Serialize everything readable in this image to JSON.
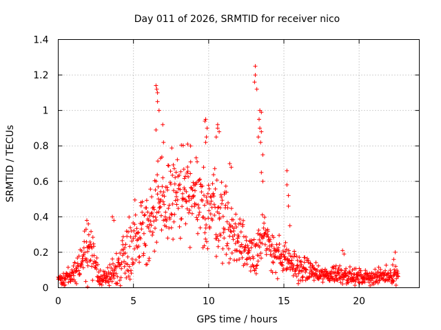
{
  "chart_data": {
    "type": "scatter",
    "title": "Day 011 of 2026, SRMTID for receiver nico",
    "xlabel": "GPS time / hours",
    "ylabel": "SRMTID / TECUs",
    "xlim": [
      0,
      24
    ],
    "ylim": [
      0,
      1.4
    ],
    "xticks": [
      0,
      5,
      10,
      15,
      20
    ],
    "xtick_labels": [
      "0",
      "5",
      "10",
      "15",
      "20"
    ],
    "yticks": [
      0,
      0.2,
      0.4,
      0.6,
      0.8,
      1,
      1.2,
      1.4
    ],
    "ytick_labels": [
      "0",
      "0.2",
      "0.4",
      "0.6",
      "0.8",
      "1",
      "1.2",
      "1.4"
    ],
    "grid": true,
    "marker": "+",
    "series": [
      {
        "name": "SRMTID",
        "color": "#ff0000",
        "envelope": {
          "x": [
            0,
            0.3,
            0.6,
            0.9,
            1.2,
            1.5,
            1.8,
            2.0,
            2.2,
            2.5,
            2.8,
            3.0,
            3.3,
            3.6,
            3.8,
            4.0,
            4.3,
            4.6,
            5.0,
            5.3,
            5.6,
            6.0,
            6.3,
            6.6,
            7.0,
            7.3,
            7.6,
            8.0,
            8.3,
            8.6,
            9.0,
            9.3,
            9.6,
            10.0,
            10.3,
            10.6,
            11.0,
            11.3,
            11.6,
            12.0,
            12.3,
            12.6,
            13.0,
            13.2,
            13.5,
            13.8,
            14.0,
            14.3,
            14.6,
            15.0,
            15.3,
            15.6,
            16.0,
            16.3,
            16.6,
            17.0,
            17.3,
            17.6,
            18.0,
            18.3,
            18.6,
            19.0,
            19.3,
            19.6,
            20.0,
            20.3,
            20.6,
            21.0,
            21.3,
            21.6,
            22.0,
            22.3,
            22.6
          ],
          "mean": [
            0.05,
            0.05,
            0.06,
            0.07,
            0.1,
            0.15,
            0.18,
            0.2,
            0.17,
            0.12,
            0.06,
            0.05,
            0.06,
            0.08,
            0.1,
            0.13,
            0.17,
            0.22,
            0.27,
            0.3,
            0.33,
            0.38,
            0.4,
            0.42,
            0.45,
            0.5,
            0.52,
            0.53,
            0.52,
            0.5,
            0.48,
            0.47,
            0.46,
            0.45,
            0.46,
            0.43,
            0.4,
            0.35,
            0.3,
            0.27,
            0.24,
            0.22,
            0.2,
            0.22,
            0.26,
            0.25,
            0.24,
            0.22,
            0.18,
            0.15,
            0.14,
            0.13,
            0.11,
            0.1,
            0.1,
            0.09,
            0.07,
            0.07,
            0.07,
            0.08,
            0.08,
            0.08,
            0.07,
            0.06,
            0.06,
            0.06,
            0.06,
            0.06,
            0.06,
            0.07,
            0.07,
            0.08,
            0.07
          ],
          "spread": [
            0.02,
            0.02,
            0.03,
            0.04,
            0.06,
            0.08,
            0.1,
            0.1,
            0.09,
            0.06,
            0.03,
            0.03,
            0.04,
            0.05,
            0.07,
            0.08,
            0.1,
            0.12,
            0.14,
            0.15,
            0.16,
            0.17,
            0.17,
            0.18,
            0.18,
            0.18,
            0.18,
            0.18,
            0.18,
            0.18,
            0.17,
            0.17,
            0.17,
            0.17,
            0.17,
            0.16,
            0.15,
            0.14,
            0.12,
            0.11,
            0.1,
            0.09,
            0.09,
            0.1,
            0.12,
            0.11,
            0.1,
            0.09,
            0.08,
            0.07,
            0.06,
            0.06,
            0.05,
            0.05,
            0.05,
            0.04,
            0.03,
            0.03,
            0.03,
            0.04,
            0.04,
            0.04,
            0.03,
            0.03,
            0.03,
            0.03,
            0.03,
            0.03,
            0.03,
            0.03,
            0.03,
            0.04,
            0.03
          ]
        },
        "point_count": 1100,
        "peaks": [
          {
            "x": 1.9,
            "y": 0.38
          },
          {
            "x": 2.0,
            "y": 0.36
          },
          {
            "x": 1.95,
            "y": 0.005
          },
          {
            "x": 3.6,
            "y": 0.4
          },
          {
            "x": 3.7,
            "y": 0.38
          },
          {
            "x": 6.5,
            "y": 1.14
          },
          {
            "x": 6.55,
            "y": 1.12
          },
          {
            "x": 6.6,
            "y": 1.1
          },
          {
            "x": 6.6,
            "y": 1.05
          },
          {
            "x": 6.7,
            "y": 1.0
          },
          {
            "x": 6.5,
            "y": 0.89
          },
          {
            "x": 6.95,
            "y": 0.92
          },
          {
            "x": 7.0,
            "y": 0.82
          },
          {
            "x": 6.8,
            "y": 0.73
          },
          {
            "x": 8.6,
            "y": 0.81
          },
          {
            "x": 8.8,
            "y": 0.8
          },
          {
            "x": 9.8,
            "y": 0.95
          },
          {
            "x": 9.75,
            "y": 0.94
          },
          {
            "x": 9.9,
            "y": 0.9
          },
          {
            "x": 9.85,
            "y": 0.85
          },
          {
            "x": 9.8,
            "y": 0.82
          },
          {
            "x": 10.6,
            "y": 0.92
          },
          {
            "x": 10.6,
            "y": 0.9
          },
          {
            "x": 10.7,
            "y": 0.88
          },
          {
            "x": 10.5,
            "y": 0.85
          },
          {
            "x": 11.4,
            "y": 0.7
          },
          {
            "x": 11.5,
            "y": 0.68
          },
          {
            "x": 13.1,
            "y": 1.25
          },
          {
            "x": 13.1,
            "y": 1.2
          },
          {
            "x": 13.05,
            "y": 1.16
          },
          {
            "x": 13.2,
            "y": 1.12
          },
          {
            "x": 13.4,
            "y": 1.0
          },
          {
            "x": 13.5,
            "y": 0.99
          },
          {
            "x": 13.35,
            "y": 0.95
          },
          {
            "x": 13.4,
            "y": 0.9
          },
          {
            "x": 13.5,
            "y": 0.88
          },
          {
            "x": 13.3,
            "y": 0.85
          },
          {
            "x": 13.45,
            "y": 0.82
          },
          {
            "x": 13.6,
            "y": 0.75
          },
          {
            "x": 13.5,
            "y": 0.65
          },
          {
            "x": 13.6,
            "y": 0.6
          },
          {
            "x": 15.2,
            "y": 0.66
          },
          {
            "x": 15.2,
            "y": 0.58
          },
          {
            "x": 15.3,
            "y": 0.52
          },
          {
            "x": 15.3,
            "y": 0.46
          },
          {
            "x": 15.4,
            "y": 0.35
          },
          {
            "x": 18.9,
            "y": 0.21
          },
          {
            "x": 19.0,
            "y": 0.19
          },
          {
            "x": 22.4,
            "y": 0.2
          },
          {
            "x": 22.3,
            "y": 0.16
          }
        ]
      }
    ]
  }
}
